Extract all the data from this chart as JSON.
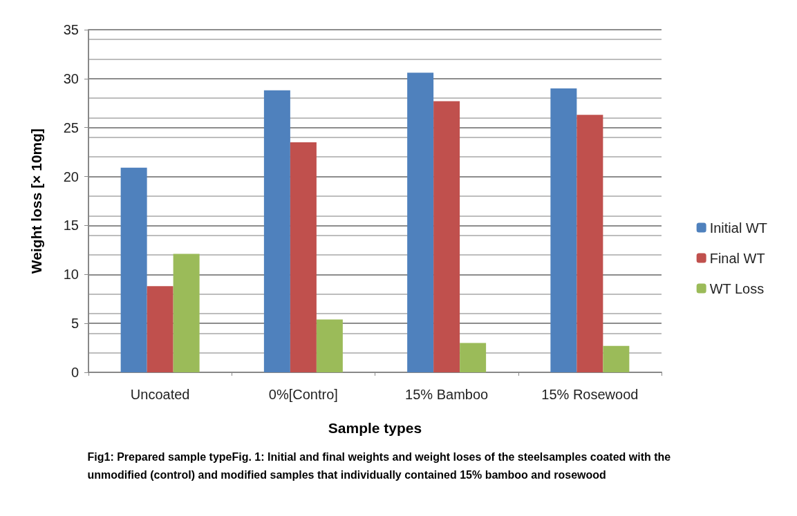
{
  "chart_data": {
    "type": "bar",
    "categories": [
      "Uncoated",
      "0%[Contro]",
      "15% Bamboo",
      "15% Rosewood"
    ],
    "series": [
      {
        "name": "Initial WT",
        "color": "#4f81bd",
        "values": [
          20.9,
          28.8,
          30.6,
          29.0
        ]
      },
      {
        "name": "Final WT",
        "color": "#c0504d",
        "values": [
          8.8,
          23.5,
          27.7,
          26.3
        ]
      },
      {
        "name": "WT Loss",
        "color": "#9bbb59",
        "values": [
          12.1,
          5.4,
          3.0,
          2.7
        ]
      }
    ],
    "xlabel": "Sample types",
    "ylabel": "Weight loss [× 10mg]",
    "ylim": [
      0,
      35
    ],
    "yticks": [
      0,
      5,
      10,
      15,
      20,
      25,
      30,
      35
    ],
    "grid": true,
    "legend": "right",
    "annotations": [
      "Fig1: Prepared sample typeFig. 1: Initial and final weights and weight loses of the steelsamples coated with the unmodified (control) and modified samples that individually contained 15% bamboo and rosewood"
    ]
  }
}
